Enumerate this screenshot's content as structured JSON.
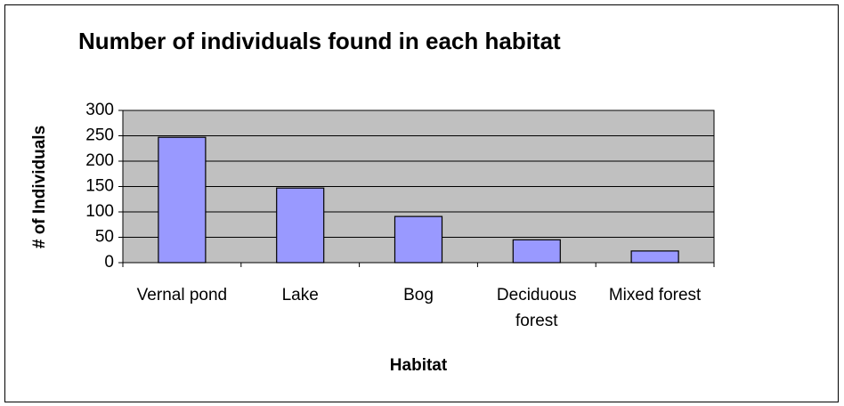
{
  "chart_data": {
    "type": "bar",
    "title": "Number of individuals found in each habitat",
    "x_label": "Habitat",
    "y_label": "# of Individuals",
    "categories": [
      "Vernal pond",
      "Lake",
      "Bog",
      "Deciduous forest",
      "Mixed forest"
    ],
    "values": [
      247,
      147,
      91,
      45,
      23
    ],
    "color": "#9999ff",
    "plot_background": "#c0c0c0",
    "ylim": [
      0,
      300
    ],
    "yticks": [
      0,
      50,
      100,
      150,
      200,
      250,
      300
    ],
    "grid": true
  }
}
